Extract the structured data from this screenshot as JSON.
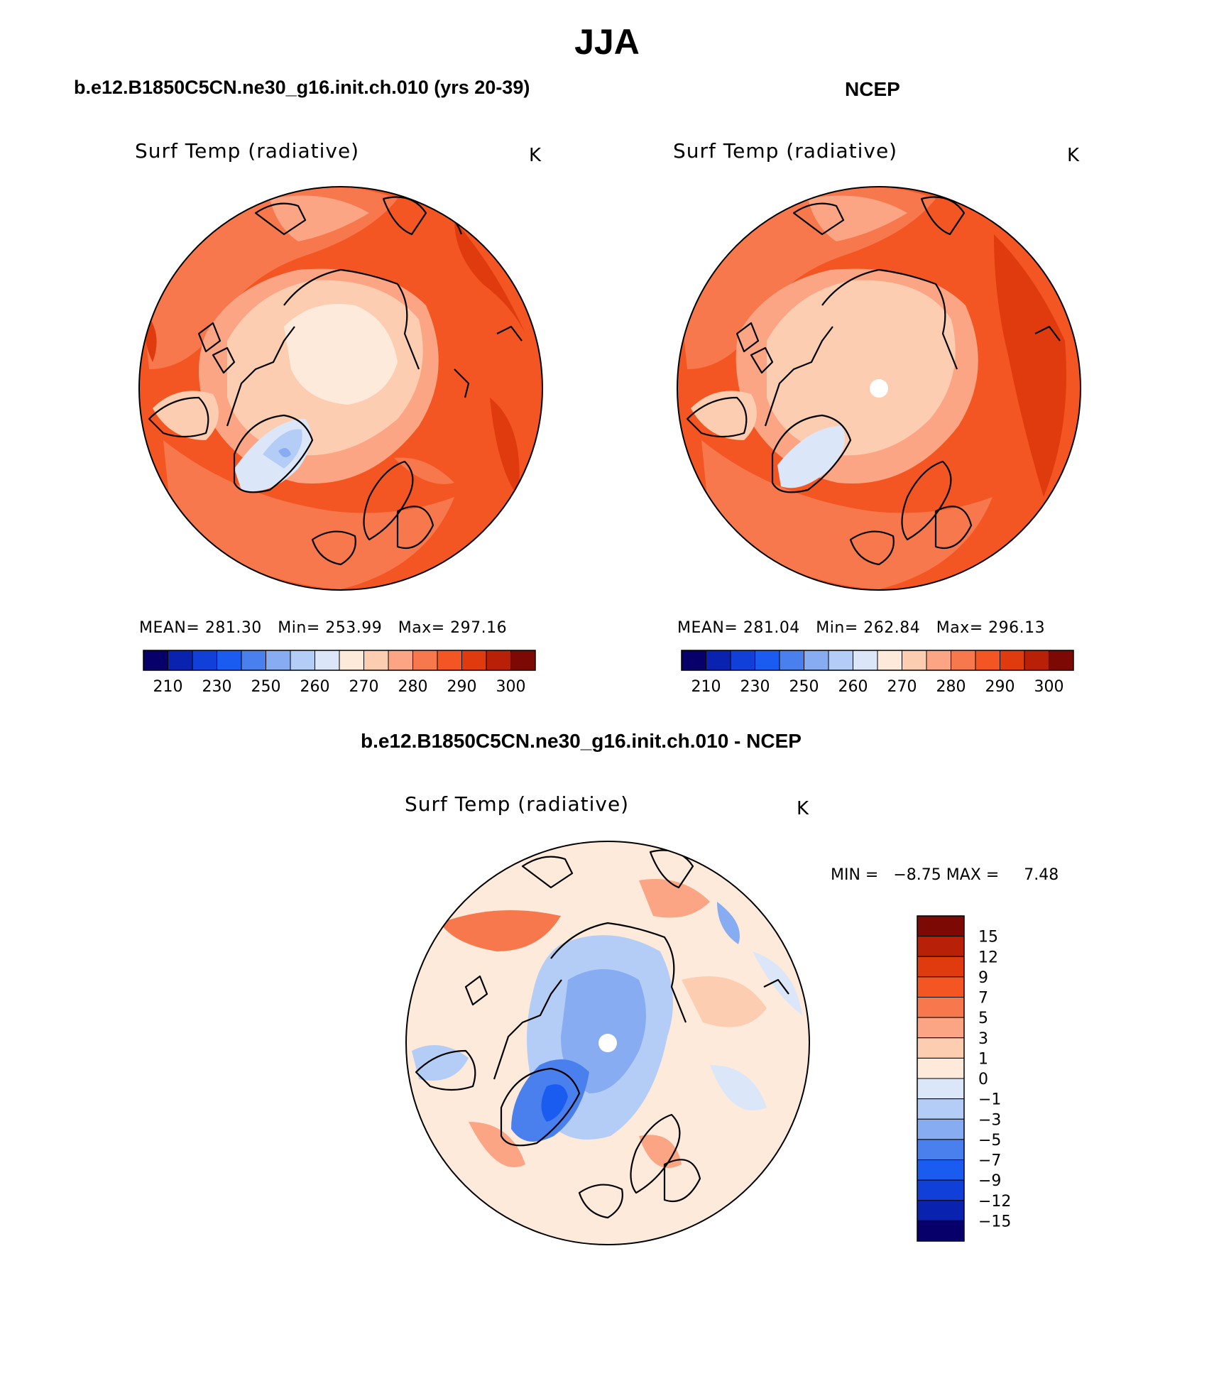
{
  "figure": {
    "season_title": "JJA"
  },
  "panels": [
    {
      "id": "model",
      "header": "b.e12.B1850C5CN.ne30_g16.init.ch.010 (yrs 20-39)",
      "variable": "Surf Temp (radiative)",
      "units": "K",
      "stats": {
        "mean_label": "MEAN=",
        "mean": "281.30",
        "min_label": "Min=",
        "min": "253.99",
        "max_label": "Max=",
        "max": "297.16"
      },
      "pole_missing": false
    },
    {
      "id": "obs",
      "header": "NCEP",
      "variable": "Surf Temp (radiative)",
      "units": "K",
      "stats": {
        "mean_label": "MEAN=",
        "mean": "281.04",
        "min_label": "Min=",
        "min": "262.84",
        "max_label": "Max=",
        "max": "296.13"
      },
      "pole_missing": true
    }
  ],
  "difference": {
    "header": "b.e12.B1850C5CN.ne30_g16.init.ch.010 - NCEP",
    "variable": "Surf Temp (radiative)",
    "units": "K",
    "min_label": "MIN =",
    "min": "−8.75",
    "max_label": "MAX =",
    "max": "7.48"
  },
  "colorbar_abs": {
    "colors": [
      "#08006a",
      "#0a22b0",
      "#1040d8",
      "#1a5cf0",
      "#4a80ee",
      "#88acf2",
      "#b4cdf6",
      "#dbe7f9",
      "#feeadb",
      "#fdcdb2",
      "#fba584",
      "#f8784e",
      "#f35622",
      "#e03a0f",
      "#b82008",
      "#7d0905"
    ],
    "tick_labels": [
      "210",
      "230",
      "250",
      "260",
      "270",
      "280",
      "290",
      "300"
    ]
  },
  "colorbar_diff": {
    "colors": [
      "#08006a",
      "#0a22b0",
      "#1040d8",
      "#1a5cf0",
      "#4a80ee",
      "#88acf2",
      "#b4cdf6",
      "#dbe7f9",
      "#feeadb",
      "#fdcdb2",
      "#fba584",
      "#f8784e",
      "#f35622",
      "#e03a0f",
      "#b82008",
      "#7d0905"
    ],
    "tick_labels": [
      "15",
      "12",
      "9",
      "7",
      "5",
      "3",
      "1",
      "0",
      "−1",
      "−3",
      "−5",
      "−7",
      "−9",
      "−12",
      "−15"
    ]
  }
}
